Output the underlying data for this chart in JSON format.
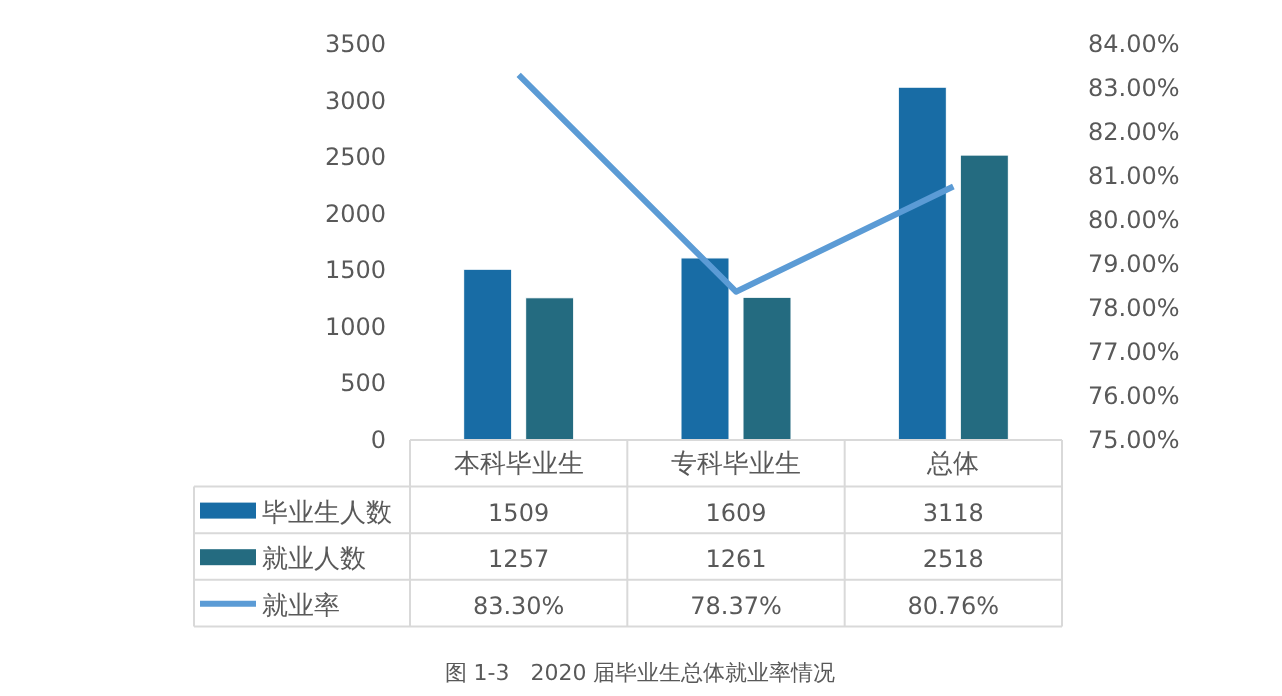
{
  "chart_data": {
    "type": "bar",
    "categories": [
      "本科毕业生",
      "专科毕业生",
      "总体"
    ],
    "series": [
      {
        "name": "毕业生人数",
        "type": "bar",
        "color": "#186ca5",
        "values": [
          1509,
          1609,
          3118
        ]
      },
      {
        "name": "就业人数",
        "type": "bar",
        "color": "#246b80",
        "values": [
          1257,
          1261,
          2518
        ]
      },
      {
        "name": "就业率",
        "type": "line",
        "axis": "y2",
        "color": "#5b9bd5",
        "values": [
          83.3,
          78.37,
          80.76
        ],
        "value_labels": [
          "83.30%",
          "78.37%",
          "80.76%"
        ]
      }
    ],
    "data_labels": true,
    "legend": "bottom",
    "ylim": [
      0,
      3500
    ],
    "yticks": [
      0,
      500,
      1000,
      1500,
      2000,
      2500,
      3000,
      3500
    ],
    "y2lim": [
      75,
      84
    ],
    "y2ticks": [
      {
        "value": 75,
        "label": "75.00%"
      },
      {
        "value": 76,
        "label": "76.00%"
      },
      {
        "value": 77,
        "label": "77.00%"
      },
      {
        "value": 78,
        "label": "78.00%"
      },
      {
        "value": 79,
        "label": "79.00%"
      },
      {
        "value": 80,
        "label": "80.00%"
      },
      {
        "value": 81,
        "label": "81.00%"
      },
      {
        "value": 82,
        "label": "82.00%"
      },
      {
        "value": 83,
        "label": "83.00%"
      },
      {
        "value": 84,
        "label": "84.00%"
      }
    ],
    "annotations": [
      "图 1-3   2020 届毕业生总体就业率情况"
    ]
  }
}
